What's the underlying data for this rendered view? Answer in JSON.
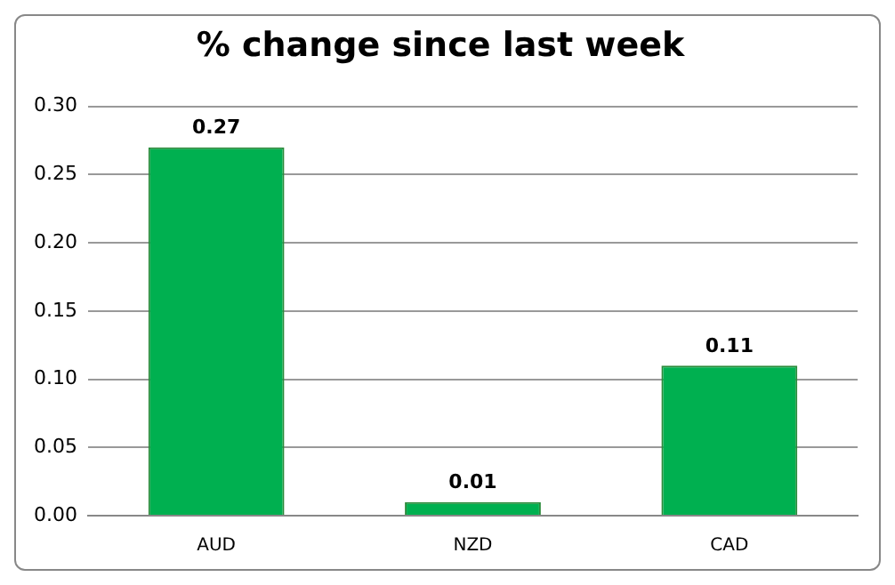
{
  "chart_data": {
    "type": "bar",
    "title": "% change since last week",
    "categories": [
      "AUD",
      "NZD",
      "CAD"
    ],
    "values": [
      0.27,
      0.01,
      0.11
    ],
    "color": "#00b050",
    "ylim": [
      0,
      0.3
    ],
    "yticks": [
      {
        "value": 0,
        "label": "0.00"
      },
      {
        "value": 0.05,
        "label": "0.05"
      },
      {
        "value": 0.1,
        "label": "0.10"
      },
      {
        "value": 0.15,
        "label": "0.15"
      },
      {
        "value": 0.2,
        "label": "0.20"
      },
      {
        "value": 0.25,
        "label": "0.25"
      },
      {
        "value": 0.3,
        "label": "0.30"
      }
    ],
    "grid": "y",
    "legend": false,
    "data_labels": true
  }
}
